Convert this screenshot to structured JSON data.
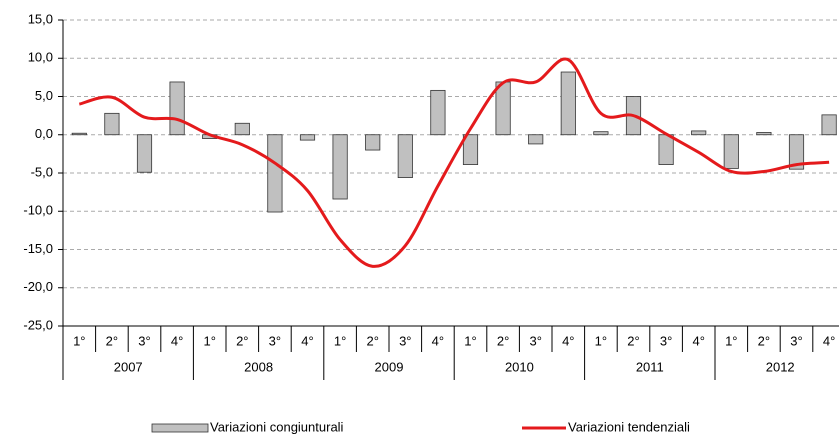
{
  "chart_data": {
    "type": "bar",
    "categories": [
      "1°",
      "2°",
      "3°",
      "4°",
      "1°",
      "2°",
      "3°",
      "4°",
      "1°",
      "2°",
      "3°",
      "4°",
      "1°",
      "2°",
      "3°",
      "4°",
      "1°",
      "2°",
      "3°",
      "4°",
      "1°",
      "2°",
      "3°",
      "4°"
    ],
    "category_groups": [
      "2007",
      "2008",
      "2009",
      "2010",
      "2011",
      "2012"
    ],
    "series": [
      {
        "name": "Variazioni congiunturali",
        "type": "bar",
        "color": "#c0c0c0",
        "values": [
          0.2,
          2.8,
          -4.9,
          6.9,
          -0.5,
          1.5,
          -10.1,
          -0.7,
          -8.4,
          -2.0,
          -5.6,
          5.8,
          -3.9,
          6.9,
          -1.2,
          8.2,
          0.4,
          5.0,
          -3.9,
          0.5,
          -4.4,
          0.3,
          -4.5,
          2.6
        ]
      },
      {
        "name": "Variazioni tendenziali",
        "type": "line",
        "color": "#e41a1c",
        "values": [
          4.0,
          4.9,
          2.3,
          2.0,
          0.0,
          -1.3,
          -3.7,
          -7.3,
          -13.7,
          -17.2,
          -14.5,
          -6.7,
          0.8,
          6.8,
          6.9,
          9.8,
          2.8,
          2.5,
          0.1,
          -2.3,
          -4.8,
          -4.8,
          -3.9,
          -3.6
        ]
      }
    ],
    "ylim": [
      -25,
      15
    ],
    "yticks": [
      {
        "value": -25,
        "label": "-25,0"
      },
      {
        "value": -20,
        "label": "-20,0"
      },
      {
        "value": -15,
        "label": "-15,0"
      },
      {
        "value": -10,
        "label": "-10,0"
      },
      {
        "value": -5,
        "label": "-5,0"
      },
      {
        "value": 0,
        "label": "0,0"
      },
      {
        "value": 5,
        "label": "5,0"
      },
      {
        "value": 10,
        "label": "10,0"
      },
      {
        "value": 15,
        "label": "15,0"
      }
    ],
    "grid": true
  }
}
